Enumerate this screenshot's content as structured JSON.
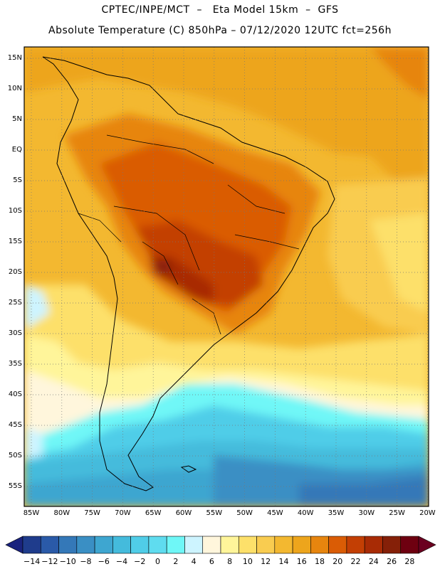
{
  "title_line1": "CPTEC/INPE/MCT  –   Eta Model 15km  –  GFS",
  "title_line2": "Absolute Temperature (C) 850hPa – 07/12/2020 12UTC fct=256h",
  "map": {
    "lat_labels": [
      "15N",
      "10N",
      "5N",
      "EQ",
      "5S",
      "10S",
      "15S",
      "20S",
      "25S",
      "30S",
      "35S",
      "40S",
      "45S",
      "50S",
      "55S"
    ],
    "lon_labels": [
      "85W",
      "80W",
      "75W",
      "70W",
      "65W",
      "60W",
      "55W",
      "50W",
      "45W",
      "40W",
      "35W",
      "30W",
      "25W",
      "20W"
    ],
    "grid": "dotted"
  },
  "colorbar": {
    "labels": [
      "-14",
      "-12",
      "-10",
      "-8",
      "-6",
      "-4",
      "-2",
      "0",
      "2",
      "4",
      "6",
      "8",
      "10",
      "12",
      "14",
      "16",
      "18",
      "20",
      "22",
      "24",
      "26",
      "28"
    ],
    "colors": [
      "#1f3c8c",
      "#2a5aa8",
      "#3478b8",
      "#3a8fc4",
      "#3ea6d0",
      "#44bbdc",
      "#50cde8",
      "#5fdcef",
      "#6ff7f7",
      "#cdf4ff",
      "#fff6dc",
      "#fff59a",
      "#fde06a",
      "#f9cc50",
      "#f3b830",
      "#eda51c",
      "#e7850e",
      "#da5c05",
      "#c33f04",
      "#a82b05",
      "#852008",
      "#6e0010"
    ],
    "left_cap": "#1a237e",
    "right_cap": "#6b0020"
  }
}
